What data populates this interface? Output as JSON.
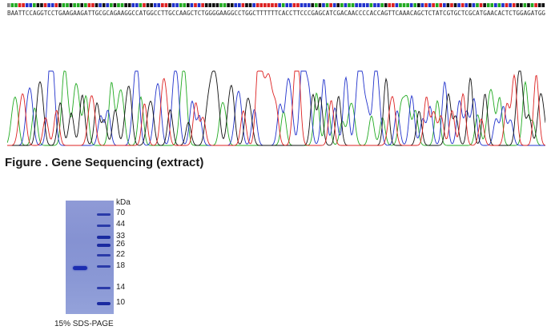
{
  "sequence": {
    "text": "BAATTCCAGGTCCTGAAGAAGATTGCGCAGAAGGCCATGGCCTTGCCAAGCTCTGGGGAAGGCCTGGCTTTTTTCACCTTCCCGAGCATCGACAACCCCACCAGTTCAAACAGCTCTATCGTGCTCGCATGAACACTCTGGAGATGG",
    "base_colors": {
      "A": "#22aa22",
      "C": "#2233cc",
      "G": "#111111",
      "T": "#dd2222",
      "N": "#888888"
    }
  },
  "figure": {
    "caption": "Figure . Gene Sequencing (extract)"
  },
  "gel": {
    "unit": "kDa",
    "markers": [
      70,
      44,
      33,
      26,
      22,
      18,
      14,
      10
    ],
    "sample_band_kda": 19,
    "caption": "15% SDS-PAGE"
  }
}
